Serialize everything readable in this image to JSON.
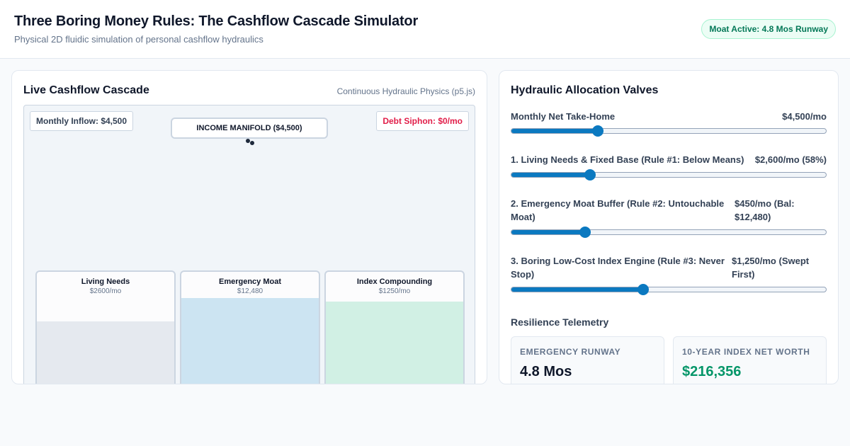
{
  "header": {
    "title": "Three Boring Money Rules: The Cashflow Cascade Simulator",
    "subtitle": "Physical 2D fluidic simulation of personal cashflow hydraulics",
    "badge": "Moat Active: 4.8 Mos Runway"
  },
  "cascade": {
    "title": "Live Cashflow Cascade",
    "caption": "Continuous Hydraulic Physics (p5.js)",
    "inflow_label": "Monthly Inflow: $4,500",
    "debt_label": "Debt Siphon: $0/mo",
    "manifold_label": "INCOME MANIFOLD ($4,500)",
    "tanks": [
      {
        "name": "Living Needs",
        "value": "$2600/mo",
        "fill_fraction": 0.6,
        "color": "#e5e9ef"
      },
      {
        "name": "Emergency Moat",
        "value": "$12,480",
        "fill_fraction": 0.79,
        "color": "#cce4f2"
      },
      {
        "name": "Index Compounding",
        "value": "$1250/mo",
        "fill_fraction": 0.76,
        "color": "#d1f0e4"
      }
    ]
  },
  "valves": {
    "title": "Hydraulic Allocation Valves",
    "sliders": [
      {
        "label": "Monthly Net Take-Home",
        "value": "$4,500/mo",
        "fraction": 0.275
      },
      {
        "label": "1. Living Needs & Fixed Base (Rule #1: Below Means)",
        "value": "$2,600/mo (58%)",
        "fraction": 0.25
      },
      {
        "label": "2. Emergency Moat Buffer (Rule #2: Untouchable Moat)",
        "value": "$450/mo (Bal: $12,480)",
        "fraction": 0.235
      },
      {
        "label": "3. Boring Low-Cost Index Engine (Rule #3: Never Stop)",
        "value": "$1,250/mo (Swept First)",
        "fraction": 0.42
      }
    ]
  },
  "telemetry": {
    "title": "Resilience Telemetry",
    "stats": [
      {
        "label": "Emergency Runway",
        "value": "4.8 Mos",
        "color": "#0f172a"
      },
      {
        "label": "10-Year Index Net Worth",
        "value": "$216,356",
        "color": "#059669"
      }
    ]
  },
  "colors": {
    "accent": "#0b79c0",
    "success": "#059669",
    "danger": "#e11d48"
  }
}
